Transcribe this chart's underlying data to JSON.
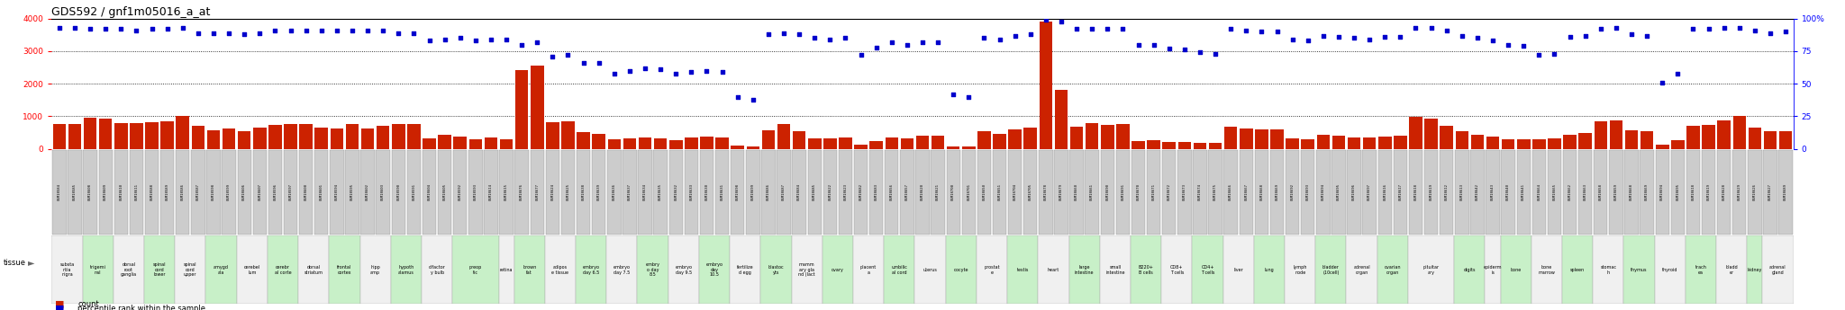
{
  "title": "GDS592 / gnf1m05016_a_at",
  "ylim_left": [
    0,
    4000
  ],
  "ylim_right": [
    0,
    100
  ],
  "yticks_left": [
    0,
    1000,
    2000,
    3000,
    4000
  ],
  "yticks_right": [
    0,
    25,
    50,
    75,
    100
  ],
  "bar_color": "#cc2200",
  "dot_color": "#0000cc",
  "samples": [
    {
      "gsm": "GSM18584",
      "tissue": "substa\nntia\nnigra",
      "count": 770,
      "pct": 93
    },
    {
      "gsm": "GSM18585",
      "tissue": "substa\nntia\nnigra",
      "count": 770,
      "pct": 93
    },
    {
      "gsm": "GSM18608",
      "tissue": "trigemi\nnal",
      "count": 960,
      "pct": 92
    },
    {
      "gsm": "GSM18609",
      "tissue": "trigemi\nnal",
      "count": 940,
      "pct": 92
    },
    {
      "gsm": "GSM18610",
      "tissue": "dorsal\nroot\nganglia",
      "count": 790,
      "pct": 92
    },
    {
      "gsm": "GSM18611",
      "tissue": "dorsal\nroot\nganglia",
      "count": 790,
      "pct": 91
    },
    {
      "gsm": "GSM18588",
      "tissue": "spinal\ncord\nlower",
      "count": 830,
      "pct": 92
    },
    {
      "gsm": "GSM18589",
      "tissue": "spinal\ncord\nlower",
      "count": 840,
      "pct": 92
    },
    {
      "gsm": "GSM18586",
      "tissue": "spinal\ncord\nupper",
      "count": 1000,
      "pct": 93
    },
    {
      "gsm": "GSM18587",
      "tissue": "spinal\ncord\nupper",
      "count": 720,
      "pct": 89
    },
    {
      "gsm": "GSM18598",
      "tissue": "amygd\nala",
      "count": 580,
      "pct": 89
    },
    {
      "gsm": "GSM18599",
      "tissue": "amygd\nala",
      "count": 630,
      "pct": 89
    },
    {
      "gsm": "GSM18606",
      "tissue": "cerebel\nlum",
      "count": 540,
      "pct": 88
    },
    {
      "gsm": "GSM18607",
      "tissue": "cerebel\nlum",
      "count": 650,
      "pct": 89
    },
    {
      "gsm": "GSM18596",
      "tissue": "cerebr\nal corte",
      "count": 730,
      "pct": 91
    },
    {
      "gsm": "GSM18597",
      "tissue": "cerebr\nal corte",
      "count": 760,
      "pct": 91
    },
    {
      "gsm": "GSM18600",
      "tissue": "dorsal\nstriatum",
      "count": 760,
      "pct": 91
    },
    {
      "gsm": "GSM18601",
      "tissue": "dorsal\nstriatum",
      "count": 640,
      "pct": 91
    },
    {
      "gsm": "GSM18594",
      "tissue": "frontal\ncortex",
      "count": 620,
      "pct": 91
    },
    {
      "gsm": "GSM18595",
      "tissue": "frontal\ncortex",
      "count": 770,
      "pct": 91
    },
    {
      "gsm": "GSM18602",
      "tissue": "hipp\namp",
      "count": 620,
      "pct": 91
    },
    {
      "gsm": "GSM18603",
      "tissue": "hipp\namp",
      "count": 710,
      "pct": 91
    },
    {
      "gsm": "GSM18590",
      "tissue": "hypoth\nalamus",
      "count": 760,
      "pct": 89
    },
    {
      "gsm": "GSM18591",
      "tissue": "hypoth\nalamus",
      "count": 760,
      "pct": 89
    },
    {
      "gsm": "GSM18604",
      "tissue": "olfactor\ny bulb",
      "count": 310,
      "pct": 83
    },
    {
      "gsm": "GSM18605",
      "tissue": "olfactor\ny bulb",
      "count": 420,
      "pct": 84
    },
    {
      "gsm": "GSM18592",
      "tissue": "preop\ntic",
      "count": 380,
      "pct": 85
    },
    {
      "gsm": "GSM18593",
      "tissue": "preop\ntic",
      "count": 280,
      "pct": 83
    },
    {
      "gsm": "GSM18614",
      "tissue": "preop\ntic",
      "count": 340,
      "pct": 84
    },
    {
      "gsm": "GSM18615",
      "tissue": "retina",
      "count": 300,
      "pct": 84
    },
    {
      "gsm": "GSM18676",
      "tissue": "brown\nfat",
      "count": 2420,
      "pct": 80
    },
    {
      "gsm": "GSM18677",
      "tissue": "brown\nfat",
      "count": 2550,
      "pct": 82
    },
    {
      "gsm": "GSM18624",
      "tissue": "adipos\ne tissue",
      "count": 810,
      "pct": 71
    },
    {
      "gsm": "GSM18625",
      "tissue": "adipos\ne tissue",
      "count": 850,
      "pct": 72
    },
    {
      "gsm": "GSM18638",
      "tissue": "embryo\nday 6.5",
      "count": 510,
      "pct": 66
    },
    {
      "gsm": "GSM18639",
      "tissue": "embryo\nday 6.5",
      "count": 470,
      "pct": 66
    },
    {
      "gsm": "GSM18636",
      "tissue": "embryo\nday 7.5",
      "count": 280,
      "pct": 58
    },
    {
      "gsm": "GSM18637",
      "tissue": "embryo\nday 7.5",
      "count": 320,
      "pct": 60
    },
    {
      "gsm": "GSM18634",
      "tissue": "embry\no day\n8.5",
      "count": 340,
      "pct": 62
    },
    {
      "gsm": "GSM18635",
      "tissue": "embry\no day\n8.5",
      "count": 310,
      "pct": 61
    },
    {
      "gsm": "GSM18632",
      "tissue": "embryo\nday 9.5",
      "count": 270,
      "pct": 58
    },
    {
      "gsm": "GSM18633",
      "tissue": "embryo\nday 9.5",
      "count": 340,
      "pct": 59
    },
    {
      "gsm": "GSM18630",
      "tissue": "embryo\nday\n10.5",
      "count": 380,
      "pct": 60
    },
    {
      "gsm": "GSM18631",
      "tissue": "embryo\nday\n10.5",
      "count": 340,
      "pct": 59
    },
    {
      "gsm": "GSM18698",
      "tissue": "fertilize\nd egg",
      "count": 90,
      "pct": 40
    },
    {
      "gsm": "GSM18699",
      "tissue": "fertilize\nd egg",
      "count": 80,
      "pct": 38
    },
    {
      "gsm": "GSM18686",
      "tissue": "blastoc\nyts",
      "count": 560,
      "pct": 88
    },
    {
      "gsm": "GSM18687",
      "tissue": "blastoc\nyts",
      "count": 770,
      "pct": 89
    },
    {
      "gsm": "GSM18684",
      "tissue": "mamm\nary gla\nnd (lact",
      "count": 530,
      "pct": 88
    },
    {
      "gsm": "GSM18685",
      "tissue": "mamm\nary gla\nnd (lact",
      "count": 310,
      "pct": 85
    },
    {
      "gsm": "GSM18622",
      "tissue": "ovary",
      "count": 330,
      "pct": 84
    },
    {
      "gsm": "GSM18623",
      "tissue": "ovary",
      "count": 360,
      "pct": 85
    },
    {
      "gsm": "GSM18682",
      "tissue": "placent\na",
      "count": 130,
      "pct": 72
    },
    {
      "gsm": "GSM18683",
      "tissue": "placent\na",
      "count": 230,
      "pct": 78
    },
    {
      "gsm": "GSM18656",
      "tissue": "umbilic\nal cord",
      "count": 340,
      "pct": 82
    },
    {
      "gsm": "GSM18657",
      "tissue": "umbilic\nal cord",
      "count": 310,
      "pct": 80
    },
    {
      "gsm": "GSM18620",
      "tissue": "uterus",
      "count": 390,
      "pct": 82
    },
    {
      "gsm": "GSM18621",
      "tissue": "uterus",
      "count": 400,
      "pct": 82
    },
    {
      "gsm": "GSM18700",
      "tissue": "oocyte",
      "count": 80,
      "pct": 42
    },
    {
      "gsm": "GSM18701",
      "tissue": "oocyte",
      "count": 80,
      "pct": 40
    },
    {
      "gsm": "GSM18650",
      "tissue": "prostat\ne",
      "count": 530,
      "pct": 85
    },
    {
      "gsm": "GSM18651",
      "tissue": "prostat\ne",
      "count": 450,
      "pct": 84
    },
    {
      "gsm": "GSM18704",
      "tissue": "testis",
      "count": 600,
      "pct": 87
    },
    {
      "gsm": "GSM18705",
      "tissue": "testis",
      "count": 640,
      "pct": 88
    },
    {
      "gsm": "GSM18678",
      "tissue": "heart",
      "count": 3900,
      "pct": 99
    },
    {
      "gsm": "GSM18679",
      "tissue": "heart",
      "count": 1800,
      "pct": 98
    },
    {
      "gsm": "GSM18660",
      "tissue": "large\nintestine",
      "count": 690,
      "pct": 92
    },
    {
      "gsm": "GSM18661",
      "tissue": "large\nintestine",
      "count": 800,
      "pct": 92
    },
    {
      "gsm": "GSM18690",
      "tissue": "small\nintestine",
      "count": 740,
      "pct": 92
    },
    {
      "gsm": "GSM18691",
      "tissue": "small\nintestine",
      "count": 760,
      "pct": 92
    },
    {
      "gsm": "GSM18670",
      "tissue": "B220+\nB cells",
      "count": 230,
      "pct": 80
    },
    {
      "gsm": "GSM18671",
      "tissue": "B220+\nB cells",
      "count": 260,
      "pct": 80
    },
    {
      "gsm": "GSM18672",
      "tissue": "CD8+\nT cells",
      "count": 200,
      "pct": 77
    },
    {
      "gsm": "GSM18673",
      "tissue": "CD8+\nT cells",
      "count": 200,
      "pct": 76
    },
    {
      "gsm": "GSM18674",
      "tissue": "CD4+\nT cells",
      "count": 190,
      "pct": 74
    },
    {
      "gsm": "GSM18675",
      "tissue": "CD4+\nT cells",
      "count": 190,
      "pct": 73
    },
    {
      "gsm": "GSM18666",
      "tissue": "liver",
      "count": 690,
      "pct": 92
    },
    {
      "gsm": "GSM18667",
      "tissue": "liver",
      "count": 620,
      "pct": 91
    },
    {
      "gsm": "GSM18668",
      "tissue": "lung",
      "count": 590,
      "pct": 90
    },
    {
      "gsm": "GSM18669",
      "tissue": "lung",
      "count": 600,
      "pct": 90
    },
    {
      "gsm": "GSM18692",
      "tissue": "lymph\nnode",
      "count": 310,
      "pct": 84
    },
    {
      "gsm": "GSM18693",
      "tissue": "lymph\nnode",
      "count": 280,
      "pct": 83
    },
    {
      "gsm": "GSM18694",
      "tissue": "bladder\n(10cell)",
      "count": 430,
      "pct": 87
    },
    {
      "gsm": "GSM18695",
      "tissue": "bladder\n(10cell)",
      "count": 390,
      "pct": 86
    },
    {
      "gsm": "GSM18696",
      "tissue": "adrenal\norgan",
      "count": 350,
      "pct": 85
    },
    {
      "gsm": "GSM18697",
      "tissue": "adrenal\norgan",
      "count": 340,
      "pct": 84
    },
    {
      "gsm": "GSM18616",
      "tissue": "ovarian\norgan",
      "count": 380,
      "pct": 86
    },
    {
      "gsm": "GSM18617",
      "tissue": "ovarian\norgan",
      "count": 400,
      "pct": 86
    },
    {
      "gsm": "GSM18618",
      "tissue": "pituitar\nary",
      "count": 980,
      "pct": 93
    },
    {
      "gsm": "GSM18619",
      "tissue": "pituitar\nary",
      "count": 940,
      "pct": 93
    },
    {
      "gsm": "GSM18612",
      "tissue": "pituitar\nary",
      "count": 700,
      "pct": 91
    },
    {
      "gsm": "GSM18613",
      "tissue": "digits",
      "count": 540,
      "pct": 87
    },
    {
      "gsm": "GSM18642",
      "tissue": "digits",
      "count": 430,
      "pct": 85
    },
    {
      "gsm": "GSM18643",
      "tissue": "epiderm\nis",
      "count": 380,
      "pct": 83
    },
    {
      "gsm": "GSM18640",
      "tissue": "bone",
      "count": 300,
      "pct": 80
    },
    {
      "gsm": "GSM18641",
      "tissue": "bone",
      "count": 280,
      "pct": 79
    },
    {
      "gsm": "GSM18664",
      "tissue": "bone\nmarrow",
      "count": 280,
      "pct": 72
    },
    {
      "gsm": "GSM18665",
      "tissue": "bone\nmarrow",
      "count": 310,
      "pct": 73
    },
    {
      "gsm": "GSM18662",
      "tissue": "spleen",
      "count": 430,
      "pct": 86
    },
    {
      "gsm": "GSM18663",
      "tissue": "spleen",
      "count": 480,
      "pct": 87
    },
    {
      "gsm": "GSM18658",
      "tissue": "stomac\nh",
      "count": 840,
      "pct": 92
    },
    {
      "gsm": "GSM18659",
      "tissue": "stomac\nh",
      "count": 870,
      "pct": 93
    },
    {
      "gsm": "GSM18668",
      "tissue": "thymus",
      "count": 560,
      "pct": 88
    },
    {
      "gsm": "GSM18669",
      "tissue": "thymus",
      "count": 530,
      "pct": 87
    },
    {
      "gsm": "GSM18694",
      "tissue": "thyroid",
      "count": 140,
      "pct": 51
    },
    {
      "gsm": "GSM18695",
      "tissue": "thyroid",
      "count": 270,
      "pct": 58
    },
    {
      "gsm": "GSM18618",
      "tissue": "trach\nea",
      "count": 700,
      "pct": 92
    },
    {
      "gsm": "GSM18619",
      "tissue": "trach\nea",
      "count": 730,
      "pct": 92
    },
    {
      "gsm": "GSM18628",
      "tissue": "bladd\ner",
      "count": 870,
      "pct": 93
    },
    {
      "gsm": "GSM18629",
      "tissue": "bladd\ner",
      "count": 1020,
      "pct": 93
    },
    {
      "gsm": "GSM18626",
      "tissue": "kidney",
      "count": 640,
      "pct": 91
    },
    {
      "gsm": "GSM18627",
      "tissue": "adrenal\ngland",
      "count": 540,
      "pct": 89
    },
    {
      "gsm": "GSM18689",
      "tissue": "adrenal\ngland",
      "count": 550,
      "pct": 90
    }
  ]
}
